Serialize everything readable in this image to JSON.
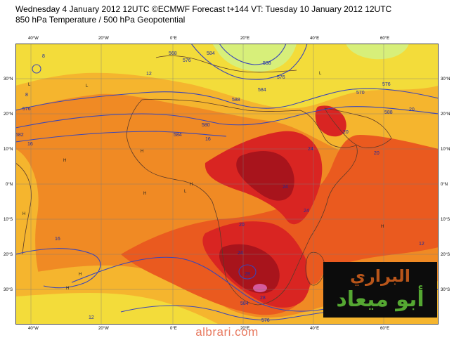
{
  "header": {
    "line1": "Wednesday 4 January 2012 12UTC ©ECMWF Forecast t+144 VT: Tuesday 10 January 2012 12UTC",
    "line2": "850 hPa Temperature / 500 hPa Geopotential"
  },
  "axes": {
    "lon_top": [
      "40°W",
      "20°W",
      "0°E",
      "20°E",
      "40°E",
      "60°E"
    ],
    "lon_bottom": [
      "40°W",
      "20°W",
      "0°E",
      "20°E",
      "40°E",
      "60°E"
    ],
    "lat_left": [
      "30°N",
      "20°N",
      "10°N",
      "0°N",
      "10°S",
      "20°S",
      "30°S"
    ],
    "lat_right": [
      "30°N",
      "20°N",
      "10°N",
      "0°N",
      "10°S",
      "20°S",
      "30°S"
    ]
  },
  "map": {
    "region": "Africa and surroundings",
    "temperature_colors": {
      "warm_yellow": "#f3dc3a",
      "light_orange": "#f5b52e",
      "orange": "#f08a24",
      "red_orange": "#ea5a1f",
      "red": "#d92522",
      "dark_red": "#a8141c",
      "cool_green": "#d7ef7a",
      "pink": "#d55b9d"
    },
    "contour_color": "#3a46b8",
    "geopotential_labels": [
      "576",
      "584",
      "588",
      "576",
      "584",
      "588",
      "580",
      "584",
      "570",
      "582",
      "576",
      "576",
      "588",
      "584",
      "576",
      "568"
    ],
    "temperature_labels": [
      "8",
      "8",
      "12",
      "16",
      "16",
      "20",
      "24",
      "24",
      "20",
      "12",
      "20",
      "24",
      "24",
      "28",
      "28",
      "16",
      "12",
      "12",
      "20"
    ],
    "pressure_markers": [
      "H",
      "H",
      "H",
      "H",
      "H",
      "H",
      "H",
      "L",
      "L",
      "L",
      "L",
      "H"
    ]
  },
  "logo": {
    "line1": "البراري",
    "line2": "أبو ميعاد",
    "background": "#0c0c0c",
    "line1_color": "#b8551a",
    "line2_color": "#55a832"
  },
  "watermark": {
    "text": "albrari.com",
    "color": "#e87a60"
  }
}
